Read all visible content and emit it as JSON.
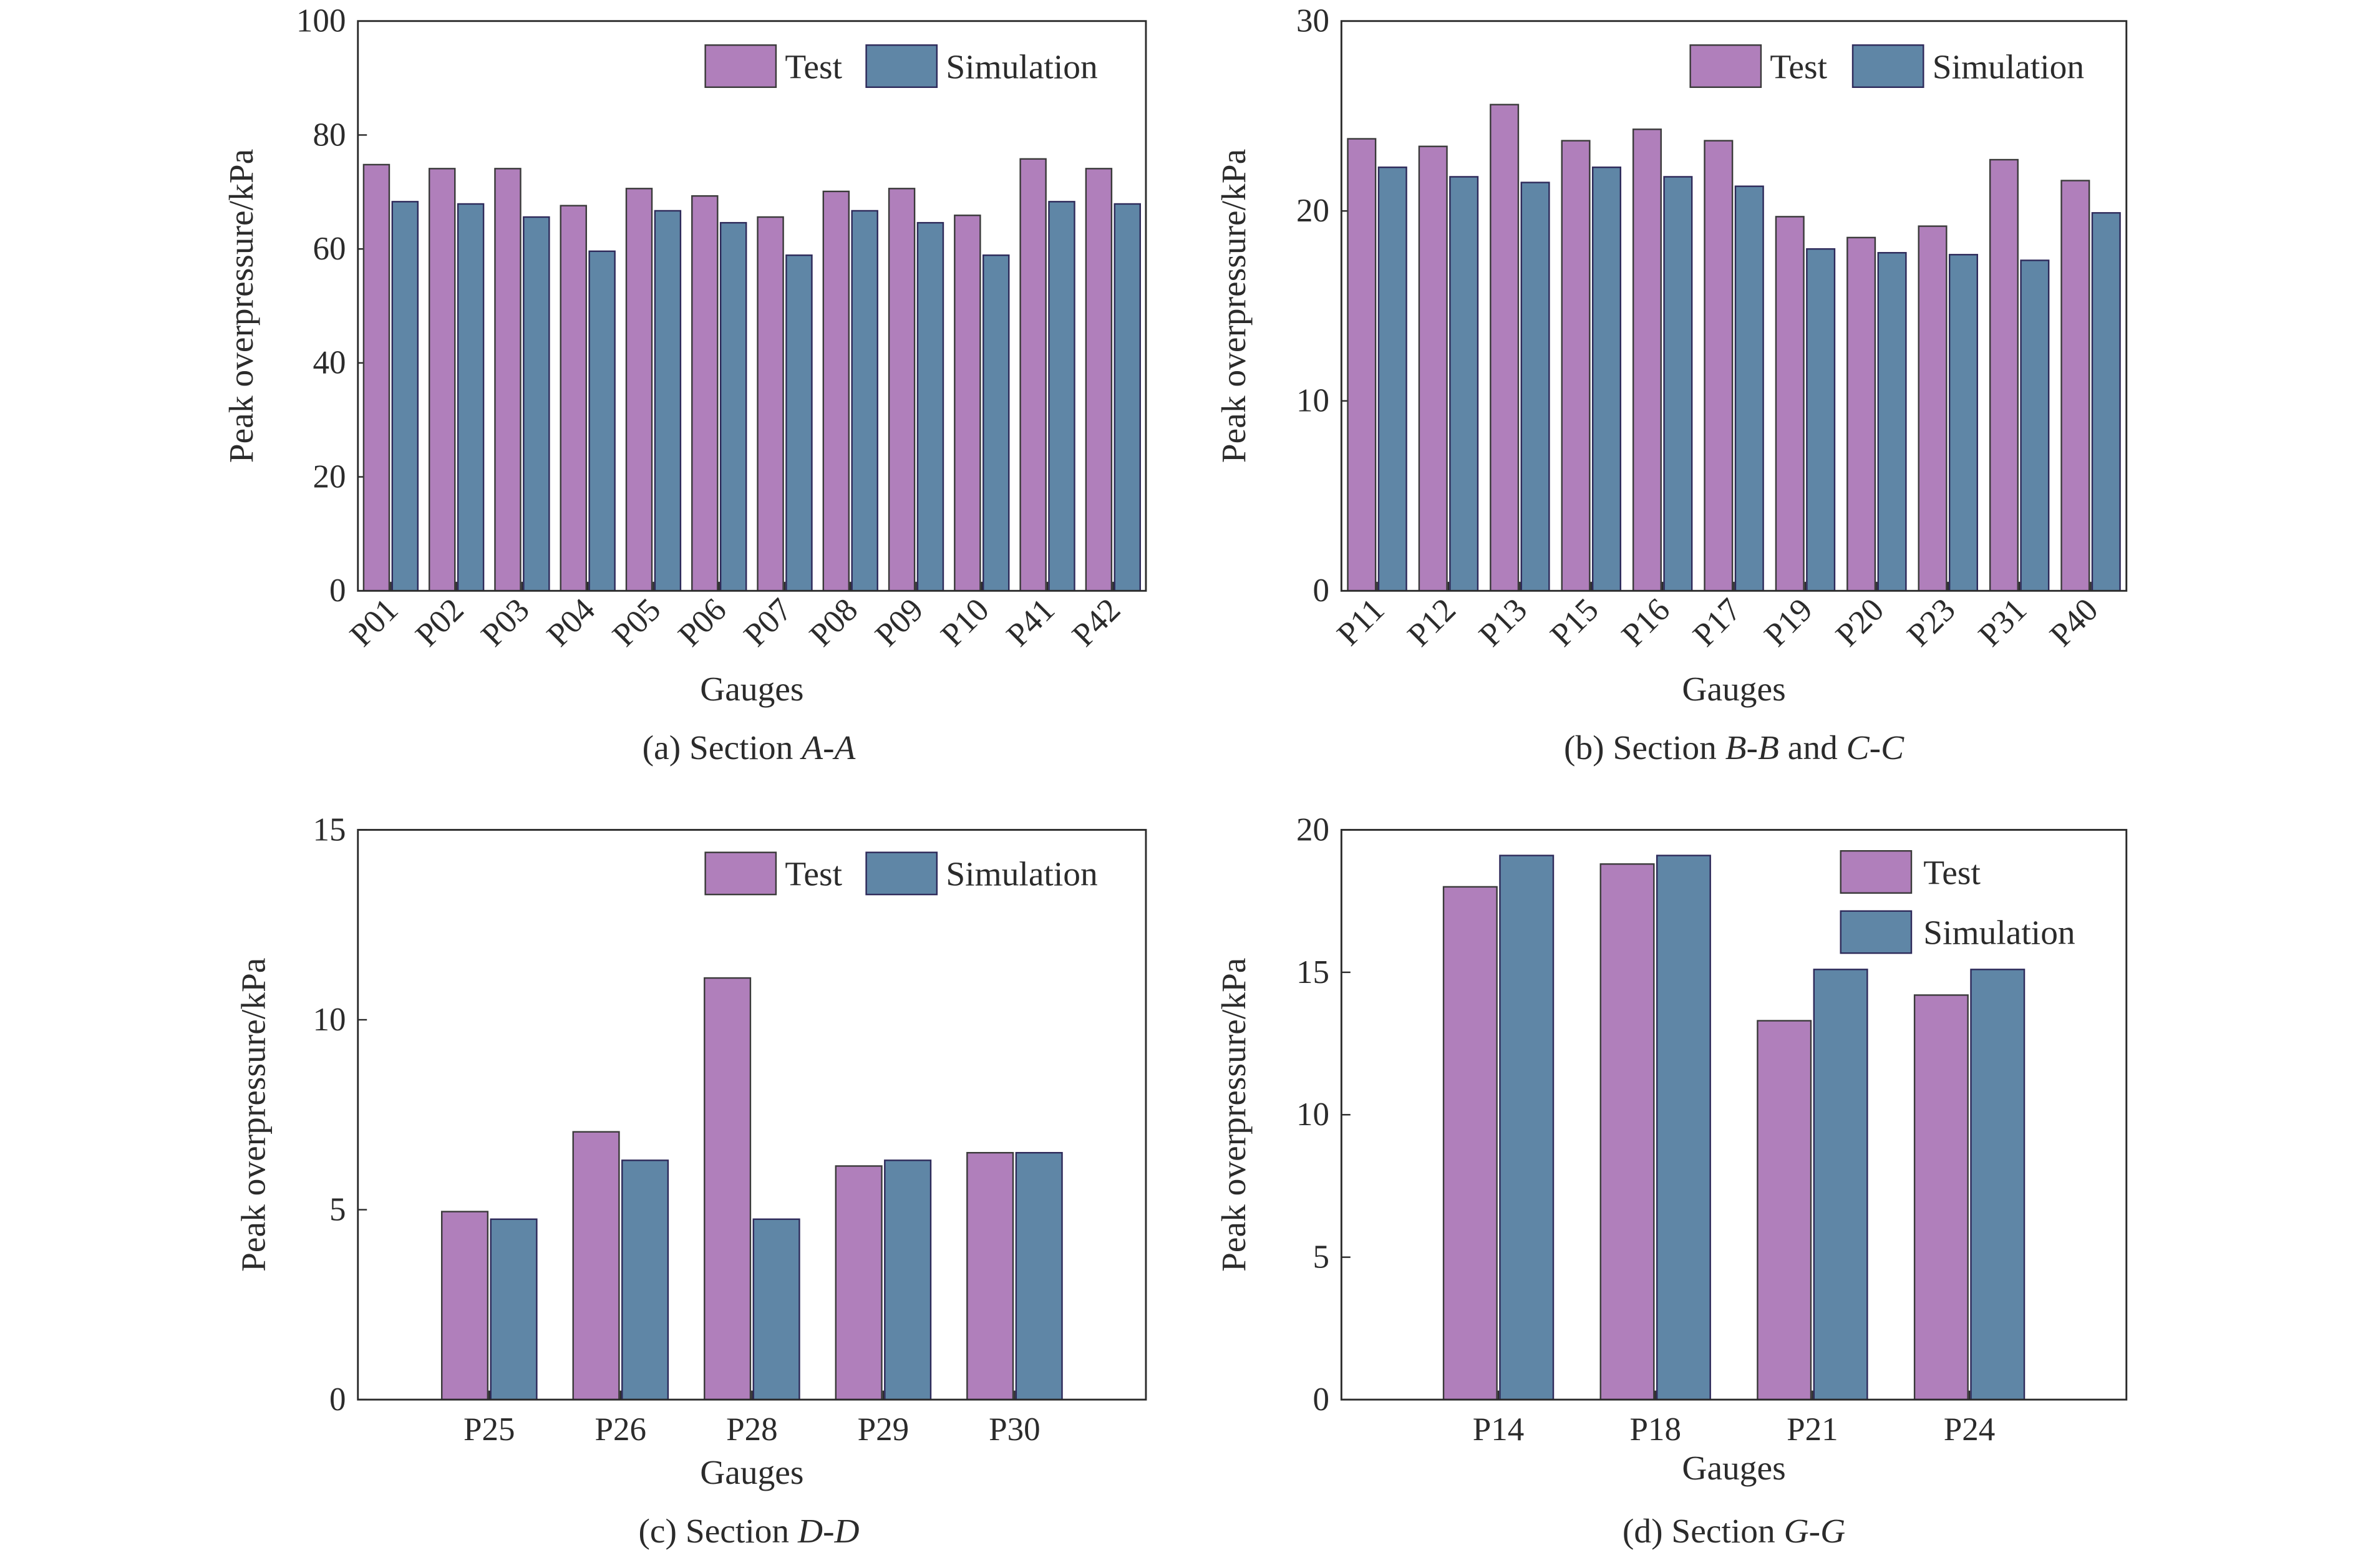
{
  "colors": {
    "test": "#b07fbb",
    "simulation": "#5f86a6"
  },
  "chart_data": [
    {
      "type": "bar",
      "caption": "(a) Section A-A",
      "caption_prefix": "(a) Section ",
      "caption_italic": "A-A",
      "caption_suffix": "",
      "xlabel": "Gauges",
      "ylabel": "Peak overpressure/kPa",
      "ylim": [
        0,
        100
      ],
      "yticks": [
        "0",
        "20",
        "40",
        "60",
        "80",
        "100"
      ],
      "legend": "top-right-inline",
      "categories": [
        "P01",
        "P02",
        "P03",
        "P04",
        "P05",
        "P06",
        "P07",
        "P08",
        "P09",
        "P10",
        "P41",
        "P42"
      ],
      "series": [
        {
          "name": "Test",
          "values": [
            74.8,
            74.1,
            74.1,
            67.6,
            70.6,
            69.3,
            65.6,
            70.1,
            70.6,
            65.9,
            75.8,
            74.1
          ]
        },
        {
          "name": "Simulation",
          "values": [
            68.3,
            67.9,
            65.6,
            59.6,
            66.7,
            64.6,
            58.9,
            66.7,
            64.6,
            58.9,
            68.3,
            67.9
          ]
        }
      ]
    },
    {
      "type": "bar",
      "caption": "(b) Section B-B and C-C",
      "caption_prefix": "(b) Section ",
      "caption_italic": "B-B",
      "caption_mid": " and ",
      "caption_italic2": "C-C",
      "xlabel": "Gauges",
      "ylabel": "Peak overpressure/kPa",
      "ylim": [
        0,
        30
      ],
      "yticks": [
        "0",
        "10",
        "20",
        "30"
      ],
      "legend": "top-right-inline",
      "categories": [
        "P11",
        "P12",
        "P13",
        "P15",
        "P16",
        "P17",
        "P19",
        "P20",
        "P23",
        "P31",
        "P40"
      ],
      "series": [
        {
          "name": "Test",
          "values": [
            23.8,
            23.4,
            25.6,
            23.7,
            24.3,
            23.7,
            19.7,
            18.6,
            19.2,
            22.7,
            21.6
          ]
        },
        {
          "name": "Simulation",
          "values": [
            22.3,
            21.8,
            21.5,
            22.3,
            21.8,
            21.3,
            18.0,
            17.8,
            17.7,
            17.4,
            19.9
          ]
        }
      ]
    },
    {
      "type": "bar",
      "caption": "(c) Section D-D",
      "caption_prefix": "(c) Section ",
      "caption_italic": "D-D",
      "caption_suffix": "",
      "xlabel": "Gauges",
      "ylabel": "Peak overpressure/kPa",
      "ylim": [
        0,
        15
      ],
      "yticks": [
        "0",
        "5",
        "10",
        "15"
      ],
      "legend": "top-right-inline",
      "categories": [
        "P25",
        "P26",
        "P28",
        "P29",
        "P30"
      ],
      "series": [
        {
          "name": "Test",
          "values": [
            4.95,
            7.05,
            11.1,
            6.15,
            6.5
          ]
        },
        {
          "name": "Simulation",
          "values": [
            4.75,
            6.3,
            4.75,
            6.3,
            6.5
          ]
        }
      ]
    },
    {
      "type": "bar",
      "caption": "(d) Section G-G",
      "caption_prefix": "(d) Section ",
      "caption_italic": "G-G",
      "caption_suffix": "",
      "xlabel": "Gauges",
      "ylabel": "Peak overpressure/kPa",
      "ylim": [
        0,
        20
      ],
      "yticks": [
        "0",
        "5",
        "10",
        "15",
        "20"
      ],
      "legend": "top-right-stacked",
      "categories": [
        "P14",
        "P18",
        "P21",
        "P24"
      ],
      "series": [
        {
          "name": "Test",
          "values": [
            18.0,
            18.8,
            13.3,
            14.2
          ]
        },
        {
          "name": "Simulation",
          "values": [
            19.1,
            19.1,
            15.1,
            15.1
          ]
        }
      ]
    }
  ]
}
